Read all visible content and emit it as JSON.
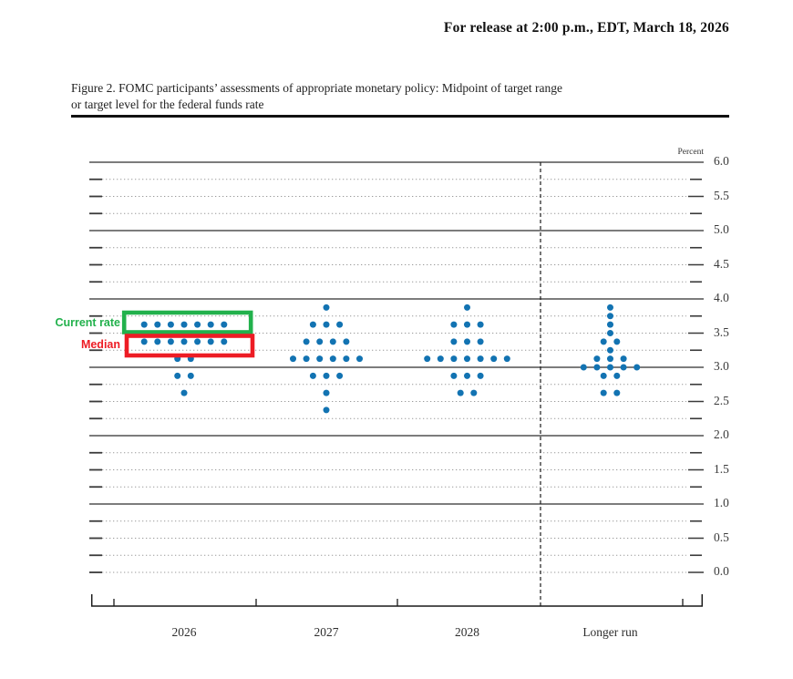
{
  "header": {
    "release_line": "For release at 2:00 p.m., EDT, March 18, 2026"
  },
  "caption": {
    "line1": "Figure 2. FOMC participants’ assessments of appropriate monetary policy: Midpoint of target range",
    "line2": "or target level for the federal funds rate"
  },
  "chart_data": {
    "type": "scatter",
    "title": "FOMC participants’ assessments of appropriate monetary policy: Midpoint of target range or target level for the federal funds rate",
    "dot_color": "#1273B2",
    "grid": "dotted lines every 0.25, solid lines at integers",
    "legend_position": "none",
    "y_axis": {
      "unit": "Percent",
      "min": 0.0,
      "max": 6.0,
      "grid_step": 0.25,
      "label_step": 0.5,
      "solid_gridlines": [
        6.0,
        5.0,
        4.0,
        3.0,
        2.0,
        1.0
      ],
      "tick_labels": [
        "6.0",
        "5.5",
        "5.0",
        "4.5",
        "4.0",
        "3.5",
        "3.0",
        "2.5",
        "2.0",
        "1.5",
        "1.0",
        "0.5",
        "0.0"
      ]
    },
    "x_axis": {
      "categories": [
        "2026",
        "2027",
        "2028",
        "Longer run"
      ],
      "separator_before": "Longer run"
    },
    "series": [
      {
        "category": "2026",
        "dots": [
          {
            "rate": 3.625,
            "count": 7
          },
          {
            "rate": 3.375,
            "count": 7
          },
          {
            "rate": 3.125,
            "count": 2
          },
          {
            "rate": 2.875,
            "count": 2
          },
          {
            "rate": 2.625,
            "count": 1
          }
        ]
      },
      {
        "category": "2027",
        "dots": [
          {
            "rate": 3.875,
            "count": 1
          },
          {
            "rate": 3.625,
            "count": 3
          },
          {
            "rate": 3.375,
            "count": 4
          },
          {
            "rate": 3.125,
            "count": 6
          },
          {
            "rate": 2.875,
            "count": 3
          },
          {
            "rate": 2.625,
            "count": 1
          },
          {
            "rate": 2.375,
            "count": 1
          }
        ]
      },
      {
        "category": "2028",
        "dots": [
          {
            "rate": 3.875,
            "count": 1
          },
          {
            "rate": 3.625,
            "count": 3
          },
          {
            "rate": 3.375,
            "count": 3
          },
          {
            "rate": 3.125,
            "count": 7
          },
          {
            "rate": 2.875,
            "count": 3
          },
          {
            "rate": 2.625,
            "count": 2
          }
        ]
      },
      {
        "category": "Longer run",
        "dots": [
          {
            "rate": 3.875,
            "count": 1
          },
          {
            "rate": 3.75,
            "count": 1
          },
          {
            "rate": 3.625,
            "count": 1
          },
          {
            "rate": 3.5,
            "count": 1
          },
          {
            "rate": 3.375,
            "count": 2
          },
          {
            "rate": 3.25,
            "count": 1
          },
          {
            "rate": 3.125,
            "count": 3
          },
          {
            "rate": 3.0,
            "count": 5
          },
          {
            "rate": 2.875,
            "count": 2
          },
          {
            "rate": 2.625,
            "count": 2
          }
        ]
      }
    ],
    "annotations": [
      {
        "label": "Current rate",
        "color": "#22B14C",
        "highlights": {
          "category": "2026",
          "rate": 3.625
        }
      },
      {
        "label": "Median",
        "color": "#ED1C24",
        "highlights": {
          "category": "2026",
          "rate": 3.375
        }
      }
    ]
  }
}
